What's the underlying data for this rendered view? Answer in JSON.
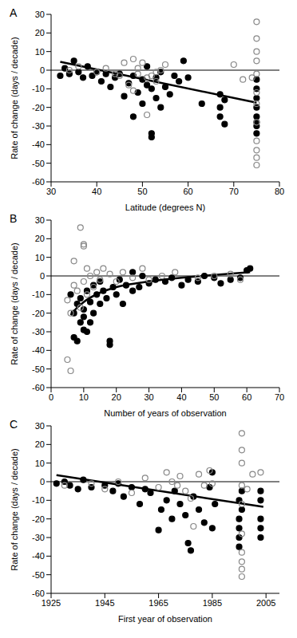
{
  "chart_data": [
    {
      "type": "scatter",
      "title": "A",
      "x_label": "Latitude (degrees N)",
      "y_label": "Rate of change (days / decade)",
      "xlim": [
        30,
        80
      ],
      "xticks": [
        30,
        40,
        50,
        60,
        70,
        80
      ],
      "ylim": [
        -60,
        30
      ],
      "yticks": [
        -60,
        -50,
        -40,
        -30,
        -20,
        -10,
        0,
        10,
        20,
        30
      ],
      "hline": 0,
      "series": [
        {
          "type": "scatter",
          "color": "#000000",
          "marker": "filled",
          "x": [
            32,
            33,
            34,
            35,
            36,
            37,
            38,
            39,
            40,
            41,
            42,
            43,
            44,
            45,
            46,
            47,
            48,
            48,
            49,
            50,
            50,
            51,
            51,
            52,
            52,
            52,
            53,
            53,
            54,
            54,
            55,
            56,
            57,
            58,
            59,
            60,
            63,
            67,
            67,
            67,
            68,
            68,
            75,
            75,
            75,
            75,
            75,
            75,
            75,
            75
          ],
          "values": [
            -3,
            1,
            -2,
            5,
            -1,
            -4,
            2,
            -3,
            -1,
            -6,
            -2,
            -9,
            -4,
            -2,
            -14,
            -7,
            -25,
            -3,
            -12,
            -5,
            -18,
            -8,
            2,
            -34,
            -36,
            -10,
            -15,
            -4,
            -20,
            -1,
            -9,
            -13,
            -3,
            -6,
            5,
            -4,
            -18,
            -13,
            -20,
            -25,
            -29,
            -16,
            -10,
            -20,
            -25,
            -30,
            -34,
            -15,
            -5,
            -28
          ]
        },
        {
          "type": "scatter",
          "color": "#888888",
          "marker": "open",
          "x": [
            34,
            36,
            40,
            42,
            44,
            46,
            47,
            48,
            49,
            50,
            51,
            52,
            53,
            54,
            55,
            48,
            51,
            70,
            72,
            74,
            75,
            75,
            75,
            75,
            75,
            75,
            75,
            75,
            75,
            75,
            75,
            75,
            53,
            49,
            45
          ],
          "values": [
            0,
            2,
            -1,
            1,
            -2,
            4,
            -8,
            6,
            -2,
            4,
            -4,
            -3,
            -6,
            0,
            3,
            -11,
            -24,
            3,
            -5,
            -4,
            26,
            17,
            10,
            5,
            -2,
            -12,
            -18,
            -28,
            -38,
            -43,
            -51,
            -47,
            -1,
            1,
            -3
          ]
        },
        {
          "type": "line",
          "color": "#000000",
          "line_style": "solid",
          "x": [
            32,
            75
          ],
          "values": [
            4.5,
            -17.5
          ]
        }
      ]
    },
    {
      "type": "scatter",
      "title": "B",
      "x_label": "Number of years of observation",
      "y_label": "Rate of change (days / decade)",
      "xlim": [
        0,
        70
      ],
      "xticks": [
        0,
        10,
        20,
        30,
        40,
        50,
        60,
        70
      ],
      "ylim": [
        -60,
        30
      ],
      "yticks": [
        -60,
        -50,
        -40,
        -30,
        -20,
        -10,
        0,
        10,
        20,
        30
      ],
      "hline": 0,
      "series": [
        {
          "type": "scatter",
          "color": "#000000",
          "marker": "filled",
          "x": [
            6,
            7,
            7,
            8,
            8,
            9,
            9,
            10,
            10,
            10,
            11,
            11,
            12,
            12,
            13,
            13,
            14,
            15,
            15,
            16,
            17,
            18,
            18,
            19,
            20,
            21,
            22,
            23,
            25,
            25,
            27,
            28,
            30,
            32,
            35,
            37,
            40,
            42,
            45,
            47,
            50,
            52,
            55,
            58,
            60,
            61
          ],
          "values": [
            -10,
            -33,
            -20,
            -35,
            -15,
            -25,
            -12,
            -29,
            -22,
            -18,
            -30,
            -8,
            -25,
            -14,
            -20,
            -5,
            -10,
            -15,
            -3,
            -8,
            -12,
            -35,
            -37,
            -6,
            -10,
            -2,
            -15,
            -5,
            -8,
            2,
            -6,
            0,
            -4,
            -2,
            -3,
            -1,
            -5,
            -2,
            -3,
            0,
            -1,
            -4,
            -2,
            -1,
            3,
            4
          ]
        },
        {
          "type": "scatter",
          "color": "#888888",
          "marker": "open",
          "x": [
            5,
            5,
            6,
            6,
            7,
            7,
            8,
            9,
            9,
            10,
            10,
            10,
            11,
            11,
            12,
            13,
            14,
            15,
            16,
            18,
            20,
            22,
            25,
            28,
            30,
            34,
            38,
            45,
            50,
            55,
            58
          ],
          "values": [
            -13,
            -45,
            -51,
            -20,
            8,
            -5,
            -8,
            -17,
            26,
            17,
            16,
            -3,
            4,
            -10,
            0,
            -6,
            2,
            -2,
            4,
            1,
            -3,
            2,
            -1,
            4,
            -2,
            0,
            2,
            -1,
            0,
            1,
            -2
          ]
        },
        {
          "type": "line",
          "color": "#000000",
          "line_style": "solid",
          "x": [
            6,
            8,
            10,
            15,
            20,
            30,
            40,
            50,
            61
          ],
          "values": [
            -21,
            -17,
            -14,
            -9,
            -6,
            -3,
            -1,
            0.5,
            2
          ]
        }
      ]
    },
    {
      "type": "scatter",
      "title": "C",
      "x_label": "First year of observation",
      "y_label": "Rate of change (days / decade)",
      "xlim": [
        1925,
        2010
      ],
      "xticks": [
        1925,
        1945,
        1965,
        1985,
        2005
      ],
      "ylim": [
        -60,
        30
      ],
      "yticks": [
        -60,
        -50,
        -40,
        -30,
        -20,
        -10,
        0,
        10,
        20,
        30
      ],
      "hline": 0,
      "series": [
        {
          "type": "scatter",
          "color": "#000000",
          "marker": "filled",
          "x": [
            1927,
            1930,
            1932,
            1935,
            1937,
            1940,
            1945,
            1948,
            1950,
            1952,
            1955,
            1958,
            1960,
            1962,
            1965,
            1966,
            1968,
            1970,
            1971,
            1973,
            1975,
            1976,
            1977,
            1978,
            1980,
            1982,
            1984,
            1985,
            1985,
            1986,
            1995,
            1995,
            1995,
            1995,
            1995,
            1996,
            1996,
            2003,
            2003,
            2003,
            2003,
            2003
          ],
          "values": [
            -1,
            0,
            -2,
            -4,
            1,
            -3,
            -2,
            -5,
            -1,
            -8,
            -3,
            -12,
            -4,
            -6,
            -26,
            -15,
            -10,
            -20,
            -5,
            -12,
            -18,
            -33,
            -37,
            -8,
            -15,
            -22,
            -3,
            -25,
            5,
            -12,
            -10,
            -20,
            -30,
            -35,
            -25,
            -5,
            -15,
            -20,
            -25,
            -30,
            -10,
            -5
          ]
        },
        {
          "type": "scatter",
          "color": "#888888",
          "marker": "open",
          "x": [
            1930,
            1940,
            1945,
            1950,
            1955,
            1960,
            1965,
            1968,
            1970,
            1972,
            1973,
            1975,
            1977,
            1978,
            1980,
            1982,
            1984,
            1985,
            1996,
            1996,
            1996,
            1996,
            1996,
            1996,
            1996,
            1996,
            1996,
            1996,
            2000,
            2003,
            1998
          ],
          "values": [
            -2,
            -1,
            -4,
            0,
            -6,
            2,
            -3,
            5,
            0,
            -2,
            3,
            -5,
            -9,
            -24,
            4,
            -2,
            6,
            -1,
            26,
            17,
            10,
            -2,
            -12,
            -28,
            -38,
            -43,
            -51,
            -47,
            4,
            5,
            -4
          ]
        },
        {
          "type": "line",
          "color": "#000000",
          "line_style": "solid",
          "x": [
            1927,
            2004
          ],
          "values": [
            3.5,
            -13.5
          ]
        }
      ]
    }
  ]
}
